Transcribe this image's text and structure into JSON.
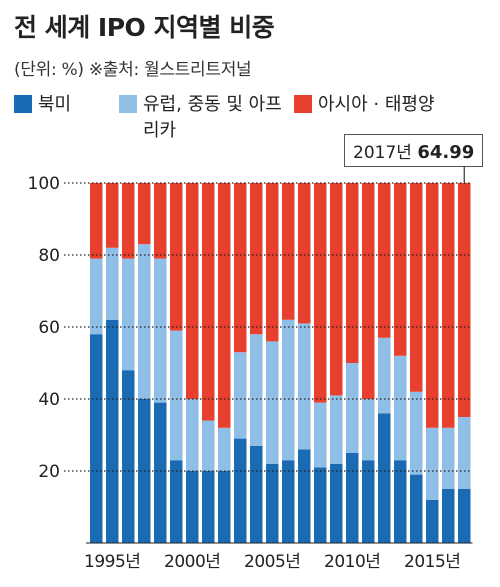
{
  "title": "전 세계 IPO 지역별 비중",
  "subtitle": "(단위: %) ※출처: 월스트리트저널",
  "colors": {
    "north_america": "#1a6bb3",
    "europe_mideast": "#8fbfe6",
    "asia_pacific": "#e8402f"
  },
  "annotation": {
    "year_label": "2017년",
    "value": "64.99"
  },
  "chart_data": {
    "type": "bar",
    "stacked": true,
    "legend_position": "top",
    "ylim": [
      0,
      100
    ],
    "yticks": [
      20,
      40,
      60,
      80,
      100
    ],
    "xtick_labels": [
      "1995년",
      "2000년",
      "2005년",
      "2010년",
      "2015년"
    ],
    "xtick_years": [
      1995,
      2000,
      2005,
      2010,
      2015
    ],
    "categories": [
      1994,
      1995,
      1996,
      1997,
      1998,
      1999,
      2000,
      2001,
      2002,
      2003,
      2004,
      2005,
      2006,
      2007,
      2008,
      2009,
      2010,
      2011,
      2012,
      2013,
      2014,
      2015,
      2016,
      2017
    ],
    "series": [
      {
        "name": "북미",
        "values": [
          58,
          62,
          48,
          40,
          39,
          23,
          20,
          20,
          20,
          29,
          27,
          22,
          23,
          26,
          21,
          22,
          25,
          23,
          36,
          23,
          19,
          12,
          15,
          15
        ]
      },
      {
        "name": "유럽, 중동 및 아프리카",
        "values": [
          21,
          20,
          31,
          43,
          40,
          36,
          20,
          14,
          12,
          24,
          31,
          34,
          39,
          35,
          18,
          19,
          25,
          17,
          21,
          29,
          23,
          20,
          17,
          20
        ]
      },
      {
        "name": "아시아 · 태평양",
        "values": [
          21,
          18,
          21,
          17,
          21,
          41,
          60,
          66,
          68,
          47,
          42,
          44,
          38,
          39,
          61,
          59,
          50,
          60,
          43,
          48,
          58,
          68,
          68,
          65
        ]
      }
    ]
  }
}
